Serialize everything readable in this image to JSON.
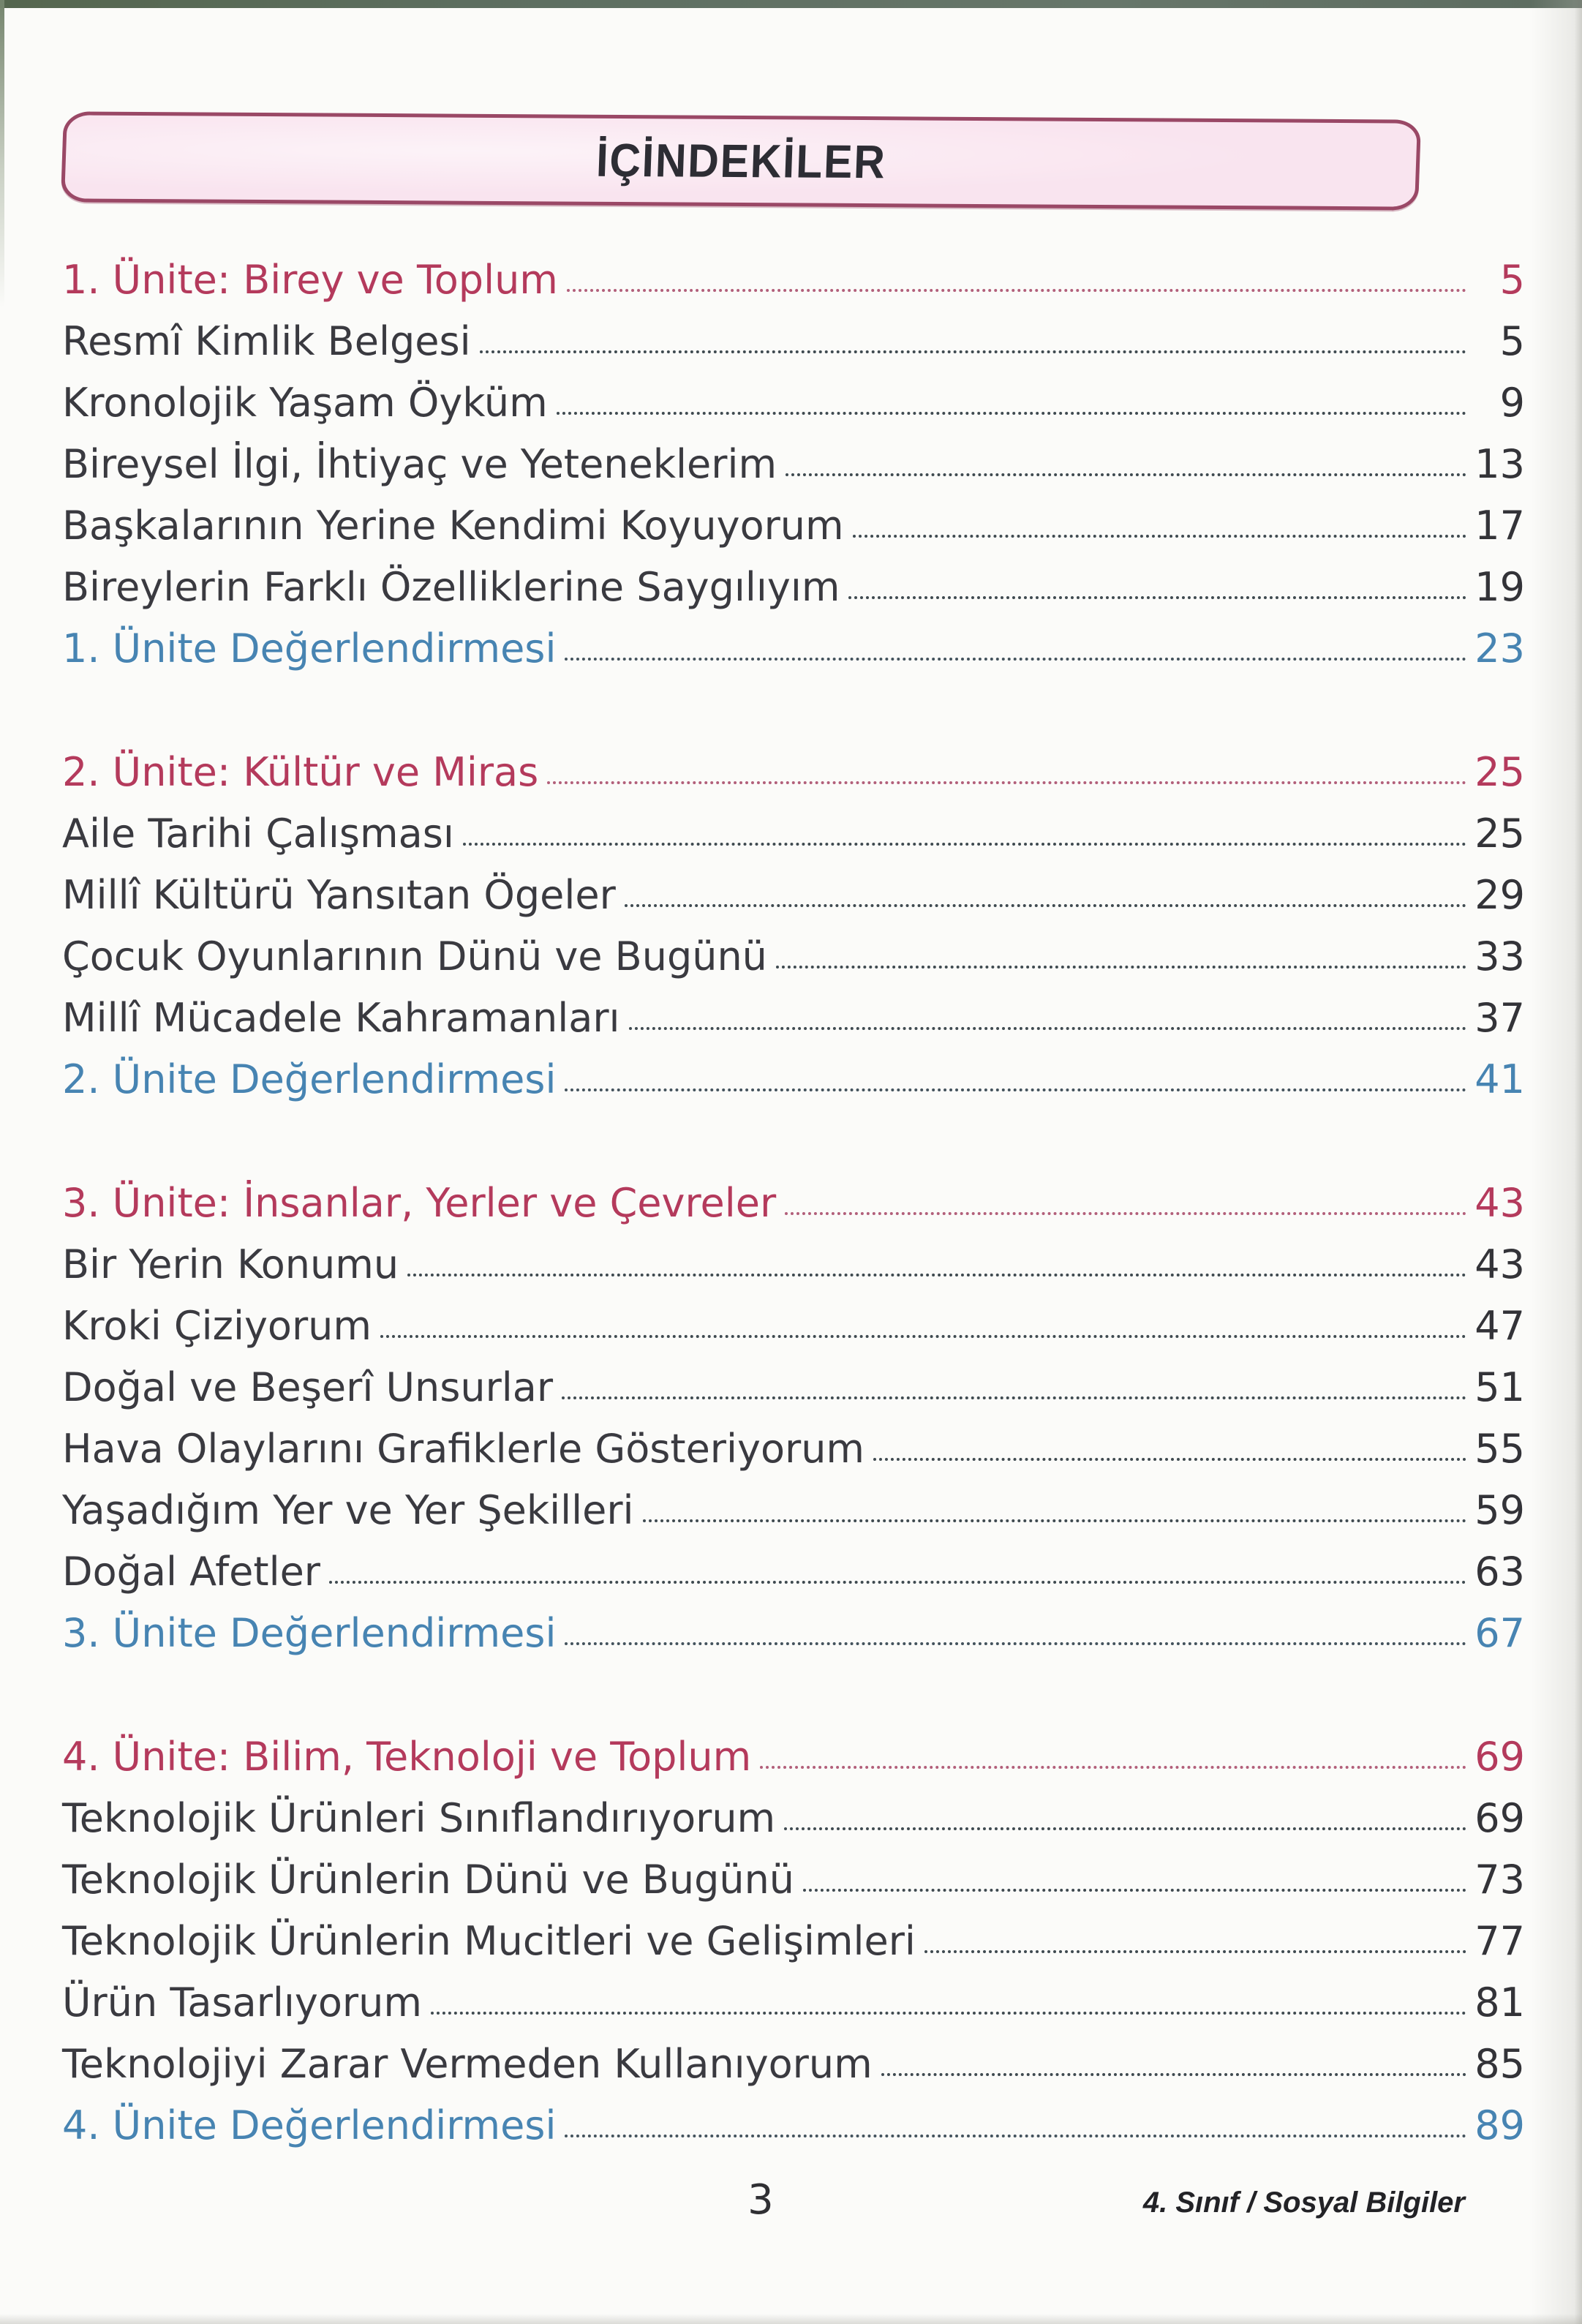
{
  "header": {
    "title": "İÇİNDEKİLER"
  },
  "footer": {
    "page_number": "3",
    "book_label": "4. Sınıf / Sosyal Bilgiler"
  },
  "colors": {
    "unit": "#b43a5c",
    "unit_leader": "#b25f7a",
    "eval": "#4784b2",
    "topic": "#3a3a40",
    "leader": "#3f4a50",
    "box_fill": "#f9e4ef",
    "box_border": "#9a4866",
    "photo_edge": "#5d6e60"
  },
  "sections": [
    {
      "rows": [
        {
          "type": "unit",
          "label": "1. Ünite: Birey ve Toplum",
          "page": "5"
        },
        {
          "type": "topic",
          "label": "Resmî Kimlik Belgesi",
          "page": "5"
        },
        {
          "type": "topic",
          "label": "Kronolojik Yaşam Öyküm",
          "page": "9"
        },
        {
          "type": "topic",
          "label": "Bireysel İlgi, İhtiyaç ve Yeteneklerim",
          "page": "13"
        },
        {
          "type": "topic",
          "label": "Başkalarının Yerine Kendimi Koyuyorum",
          "page": "17"
        },
        {
          "type": "topic",
          "label": "Bireylerin Farklı Özelliklerine Saygılıyım",
          "page": "19"
        },
        {
          "type": "eval",
          "label": "1. Ünite Değerlendirmesi",
          "page": "23"
        }
      ]
    },
    {
      "rows": [
        {
          "type": "unit",
          "label": "2. Ünite: Kültür ve Miras",
          "page": "25"
        },
        {
          "type": "topic",
          "label": "Aile Tarihi Çalışması",
          "page": "25"
        },
        {
          "type": "topic",
          "label": "Millî Kültürü Yansıtan Ögeler",
          "page": "29"
        },
        {
          "type": "topic",
          "label": "Çocuk Oyunlarının Dünü ve Bugünü",
          "page": "33"
        },
        {
          "type": "topic",
          "label": "Millî Mücadele Kahramanları",
          "page": "37"
        },
        {
          "type": "eval",
          "label": "2. Ünite Değerlendirmesi",
          "page": "41"
        }
      ]
    },
    {
      "rows": [
        {
          "type": "unit",
          "label": "3. Ünite: İnsanlar, Yerler ve Çevreler",
          "page": "43"
        },
        {
          "type": "topic",
          "label": "Bir Yerin Konumu",
          "page": "43"
        },
        {
          "type": "topic",
          "label": "Kroki Çiziyorum",
          "page": "47"
        },
        {
          "type": "topic",
          "label": "Doğal ve Beşerî Unsurlar",
          "page": "51"
        },
        {
          "type": "topic",
          "label": "Hava Olaylarını Grafiklerle Gösteriyorum",
          "page": "55"
        },
        {
          "type": "topic",
          "label": "Yaşadığım Yer ve Yer Şekilleri",
          "page": "59"
        },
        {
          "type": "topic",
          "label": "Doğal Afetler",
          "page": "63"
        },
        {
          "type": "eval",
          "label": "3. Ünite Değerlendirmesi",
          "page": "67"
        }
      ]
    },
    {
      "rows": [
        {
          "type": "unit",
          "label": "4. Ünite: Bilim, Teknoloji ve Toplum",
          "page": "69"
        },
        {
          "type": "topic",
          "label": "Teknolojik Ürünleri Sınıflandırıyorum",
          "page": "69"
        },
        {
          "type": "topic",
          "label": "Teknolojik Ürünlerin Dünü ve Bugünü",
          "page": "73"
        },
        {
          "type": "topic",
          "label": "Teknolojik Ürünlerin Mucitleri ve Gelişimleri",
          "page": "77"
        },
        {
          "type": "topic",
          "label": "Ürün Tasarlıyorum",
          "page": "81"
        },
        {
          "type": "topic",
          "label": "Teknolojiyi Zarar Vermeden Kullanıyorum",
          "page": "85"
        },
        {
          "type": "eval",
          "label": "4. Ünite Değerlendirmesi",
          "page": "89"
        }
      ]
    }
  ]
}
